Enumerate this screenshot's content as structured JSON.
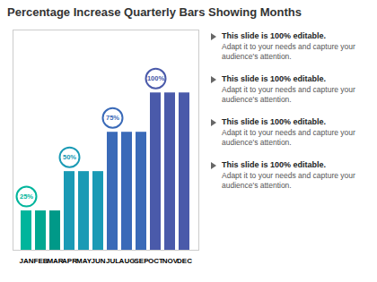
{
  "chart_data": {
    "type": "bar",
    "title": "Percentage Increase Quarterly Bars Showing Months",
    "categories": [
      "JAN",
      "FEB",
      "MAR",
      "APR",
      "MAY",
      "JUN",
      "JUL",
      "AUG",
      "SEP",
      "OCT",
      "NOV",
      "DEC"
    ],
    "values": [
      25,
      25,
      25,
      50,
      50,
      50,
      75,
      75,
      75,
      100,
      100,
      100
    ],
    "colors": [
      "#00b59c",
      "#00a890",
      "#009988",
      "#1a9ab5",
      "#1a9ab5",
      "#1a9ab5",
      "#3a6ab8",
      "#3a6ab8",
      "#3a6ab8",
      "#4a5aaa",
      "#4a5aaa",
      "#4a5aaa"
    ],
    "data_labels": true,
    "value_labels": [
      "25%",
      null,
      null,
      "50%",
      null,
      null,
      "75%",
      null,
      null,
      "100%",
      null,
      null
    ],
    "ylim": [
      0,
      140
    ],
    "tick_labels": "x",
    "grid": false,
    "annotations": [
      "This slide is 100% editable.",
      "Adapt it to your needs and capture your\naudience's attention.",
      "This slide is 100% editable.",
      "Adapt it to your needs and capture your\naudience's attention.",
      "This slide is 100% editable.",
      "Adapt it to your needs and capture your\naudience's attention.",
      "This slide is 100% editable.",
      "Adapt it to your needs and capture your\naudience's attention."
    ]
  }
}
